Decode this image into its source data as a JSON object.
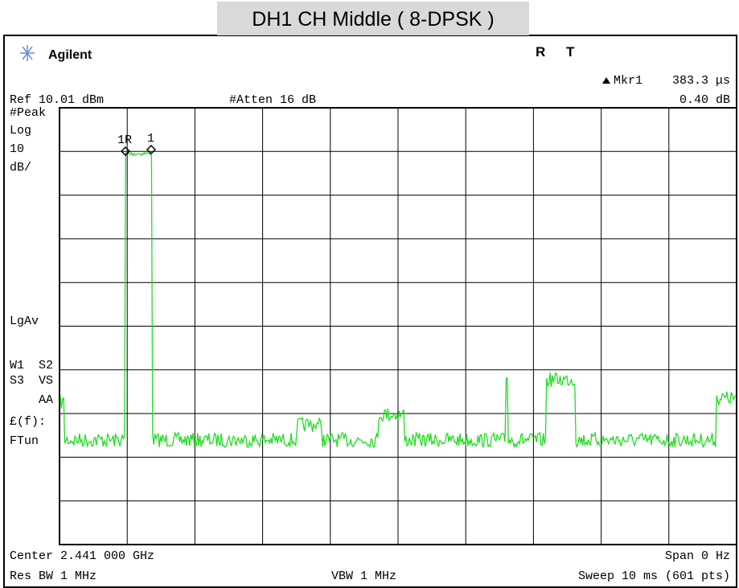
{
  "title": "DH1 CH Middle ( 8-DPSK )",
  "header": {
    "brand": "Agilent",
    "flag_r": "R",
    "flag_t": "T",
    "marker_name": "Mkr1",
    "marker_time": "383.3 μs",
    "marker_level": "0.40 dB",
    "ref": "Ref 10.01 dBm",
    "atten": "#Atten 16 dB"
  },
  "side_labels": [
    "#Peak",
    "Log",
    "10",
    "dB/",
    "LgAv",
    "W1  S2",
    "S3  VS",
    "AA",
    "£(f):",
    "FTun"
  ],
  "trace_markers": [
    "1R",
    "1"
  ],
  "footer": {
    "center": "Center 2.441 000 GHz",
    "span": "Span 0 Hz",
    "rbw": "Res BW 1 MHz",
    "vbw": "VBW 1 MHz",
    "sweep": "Sweep 10 ms (601 pts)"
  }
}
